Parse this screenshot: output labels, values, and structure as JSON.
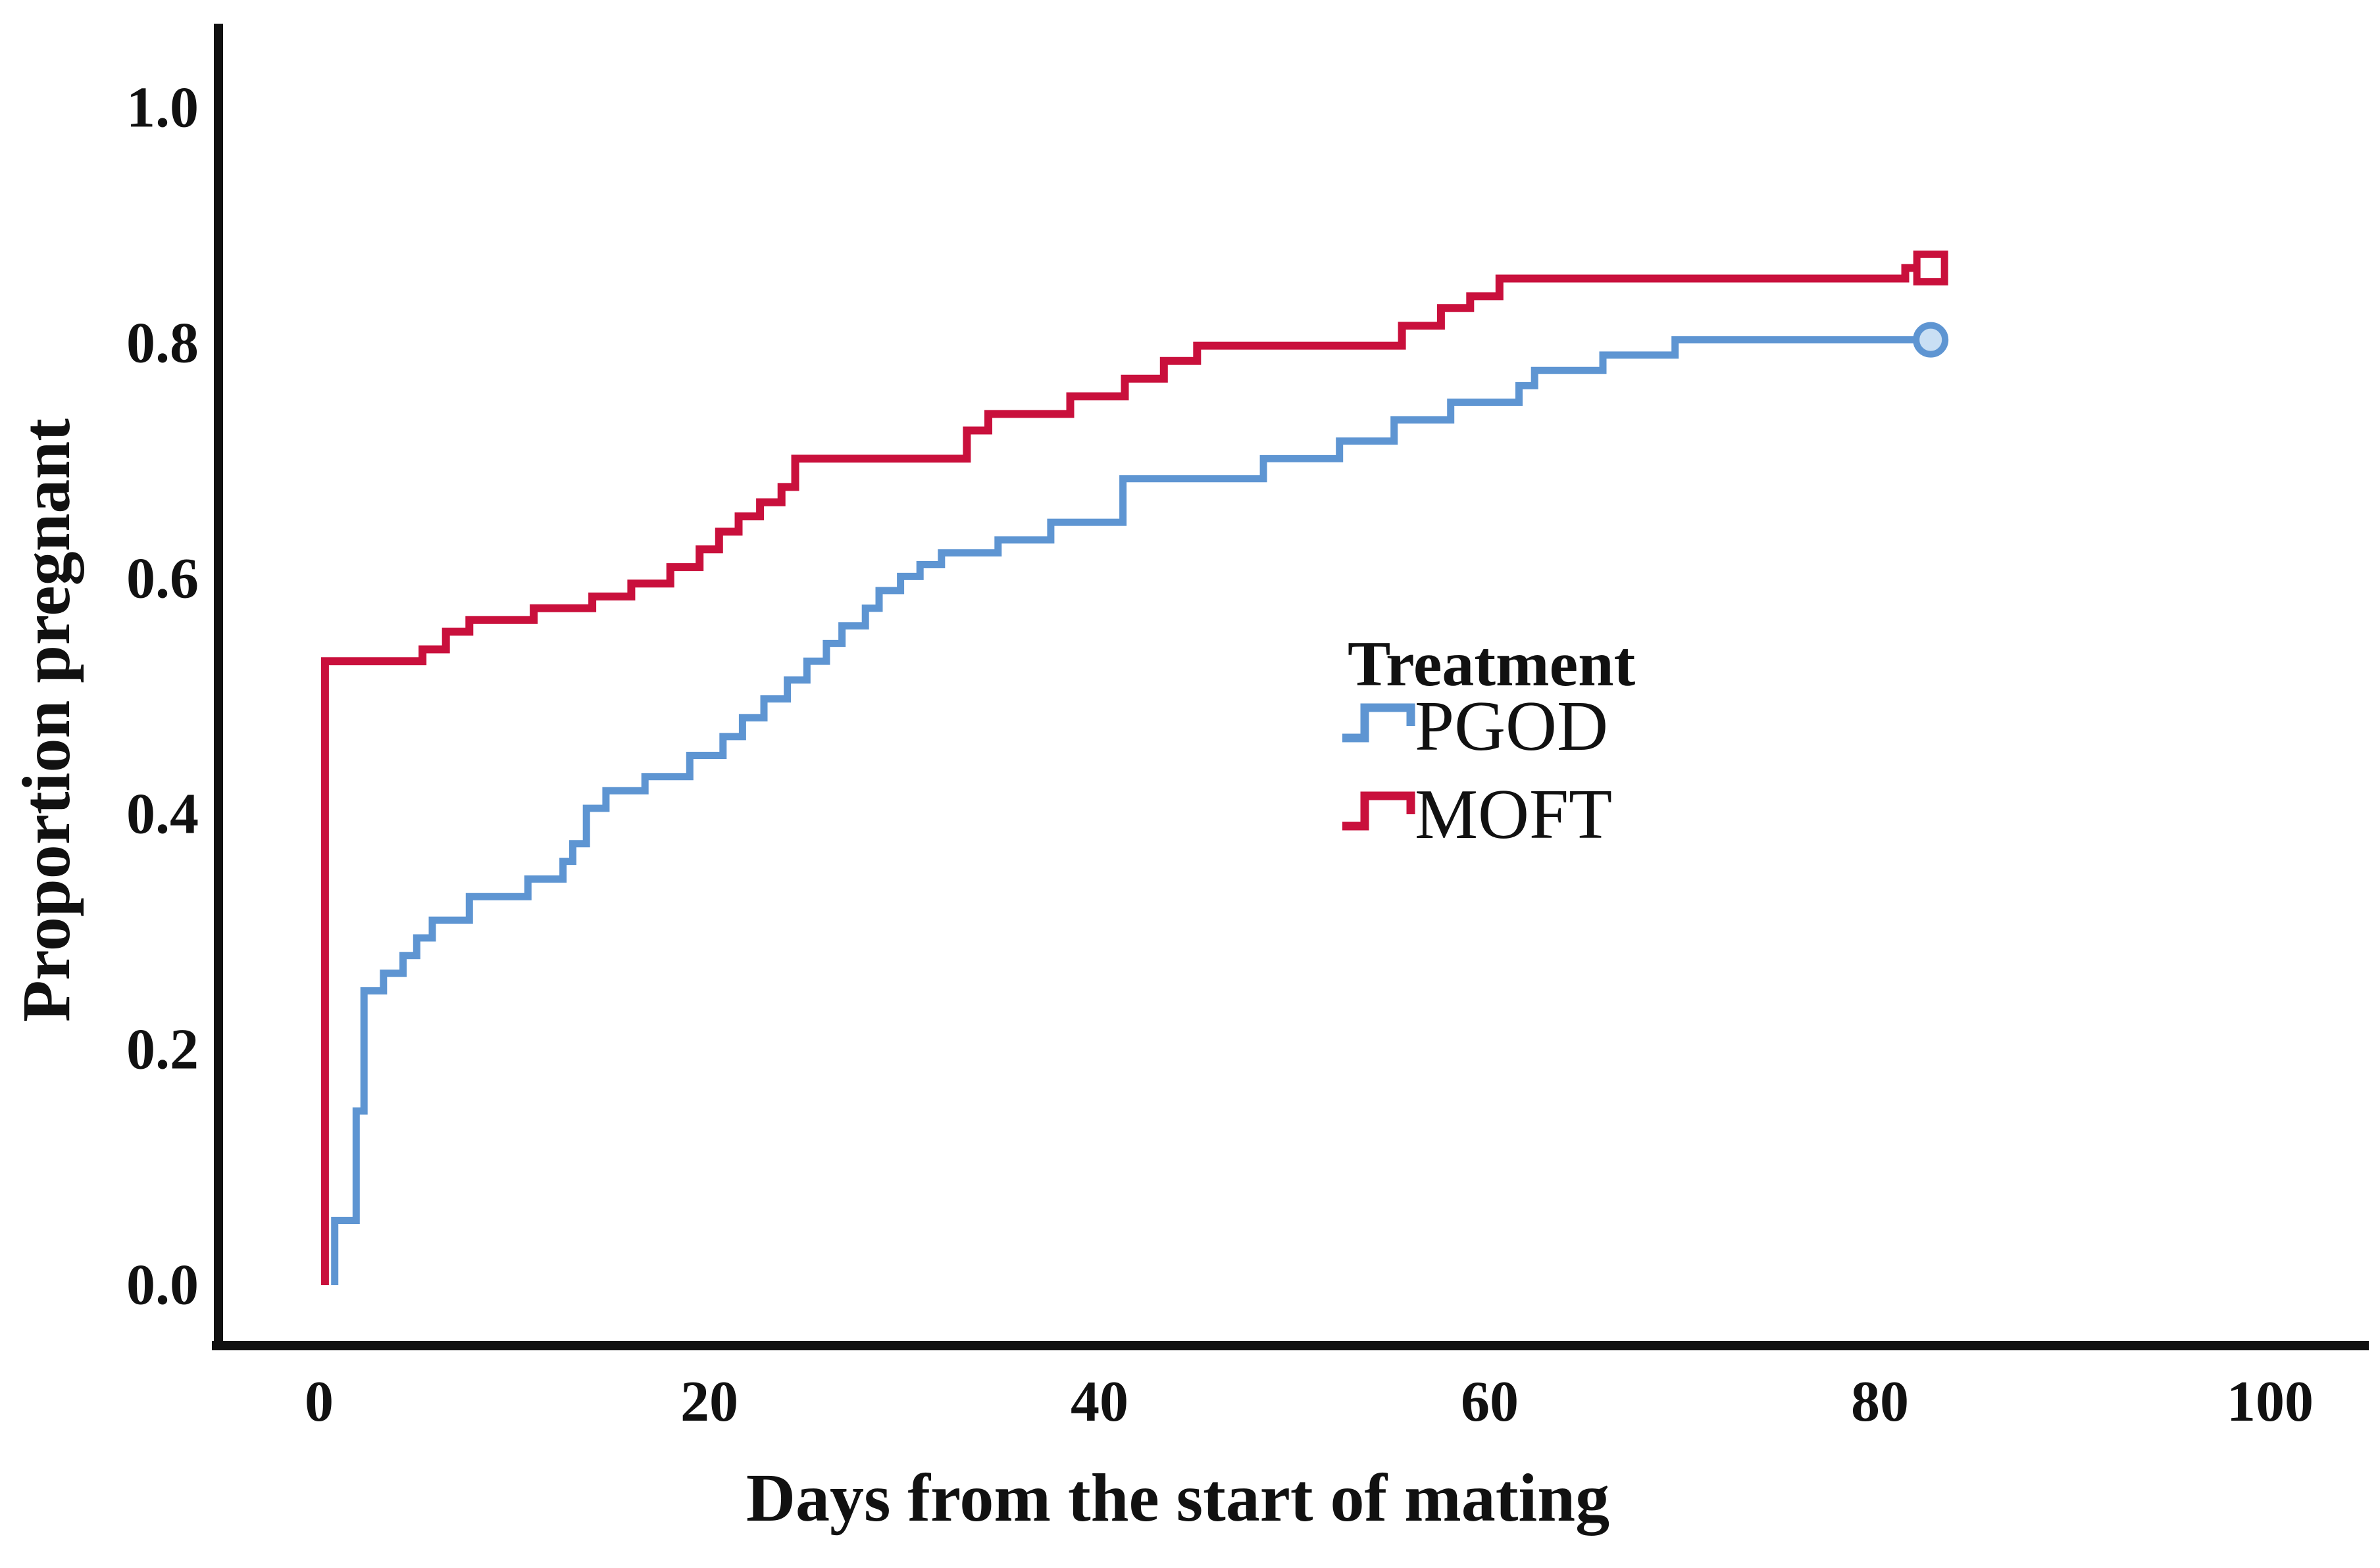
{
  "chart_data": {
    "type": "line",
    "variant": "kaplan_meier_cumulative_step",
    "title": "",
    "xlabel": "Days from the start of mating",
    "ylabel": "Proportion pregnant",
    "grid": false,
    "x_axis": {
      "ticks": [
        "0",
        "20",
        "40",
        "60",
        "80",
        "100"
      ],
      "tick_values": [
        0,
        20,
        40,
        60,
        80,
        100
      ],
      "range": [
        -5,
        105
      ]
    },
    "y_axis": {
      "ticks": [
        "1.0",
        "0.8",
        "0.6",
        "0.4",
        "0.2",
        "0.0"
      ],
      "tick_values": [
        1.0,
        0.8,
        0.6,
        0.4,
        0.2,
        0.0
      ],
      "range": [
        0,
        1.0
      ]
    },
    "legend": {
      "title": "Treatment",
      "position": "center-right"
    },
    "series": [
      {
        "name": "PGOD",
        "color": "#5E95D2",
        "line_width": 11,
        "end_marker": "open-circle",
        "marker_fill": "#C9DFF4",
        "start_day": 0.8,
        "end_day": 82.4,
        "events": [
          [
            0.8,
            0.055
          ],
          [
            1.9,
            0.148
          ],
          [
            2.3,
            0.25
          ],
          [
            3.3,
            0.265
          ],
          [
            4.3,
            0.28
          ],
          [
            5.0,
            0.295
          ],
          [
            5.8,
            0.31
          ],
          [
            7.7,
            0.33
          ],
          [
            10.7,
            0.345
          ],
          [
            12.5,
            0.36
          ],
          [
            13.0,
            0.375
          ],
          [
            13.7,
            0.405
          ],
          [
            14.7,
            0.42
          ],
          [
            16.7,
            0.432
          ],
          [
            19.0,
            0.45
          ],
          [
            20.7,
            0.466
          ],
          [
            21.7,
            0.482
          ],
          [
            22.8,
            0.498
          ],
          [
            24.0,
            0.514
          ],
          [
            25.0,
            0.53
          ],
          [
            26.0,
            0.545
          ],
          [
            26.8,
            0.56
          ],
          [
            28.0,
            0.575
          ],
          [
            28.7,
            0.59
          ],
          [
            29.8,
            0.602
          ],
          [
            30.8,
            0.612
          ],
          [
            31.9,
            0.622
          ],
          [
            34.8,
            0.633
          ],
          [
            37.5,
            0.648
          ],
          [
            41.2,
            0.685
          ],
          [
            48.4,
            0.702
          ],
          [
            52.3,
            0.717
          ],
          [
            55.1,
            0.735
          ],
          [
            58.0,
            0.75
          ],
          [
            61.5,
            0.764
          ],
          [
            62.3,
            0.777
          ],
          [
            65.8,
            0.79
          ],
          [
            69.5,
            0.803
          ]
        ]
      },
      {
        "name": "MOFT",
        "color": "#C9103C",
        "line_width": 12,
        "end_marker": "open-square",
        "marker_fill": "#FFFFFF",
        "start_day": 0.3,
        "end_day": 82.4,
        "events": [
          [
            0.3,
            0.53
          ],
          [
            5.3,
            0.54
          ],
          [
            6.5,
            0.555
          ],
          [
            7.7,
            0.565
          ],
          [
            11.0,
            0.575
          ],
          [
            14.0,
            0.585
          ],
          [
            16.0,
            0.596
          ],
          [
            18.0,
            0.61
          ],
          [
            19.5,
            0.625
          ],
          [
            20.5,
            0.64
          ],
          [
            21.5,
            0.653
          ],
          [
            22.6,
            0.665
          ],
          [
            23.7,
            0.678
          ],
          [
            24.4,
            0.702
          ],
          [
            33.2,
            0.726
          ],
          [
            34.3,
            0.74
          ],
          [
            38.5,
            0.755
          ],
          [
            41.3,
            0.77
          ],
          [
            43.3,
            0.785
          ],
          [
            45.0,
            0.798
          ],
          [
            55.5,
            0.815
          ],
          [
            57.5,
            0.83
          ],
          [
            59.0,
            0.84
          ],
          [
            60.5,
            0.855
          ],
          [
            81.3,
            0.864
          ]
        ]
      }
    ]
  }
}
